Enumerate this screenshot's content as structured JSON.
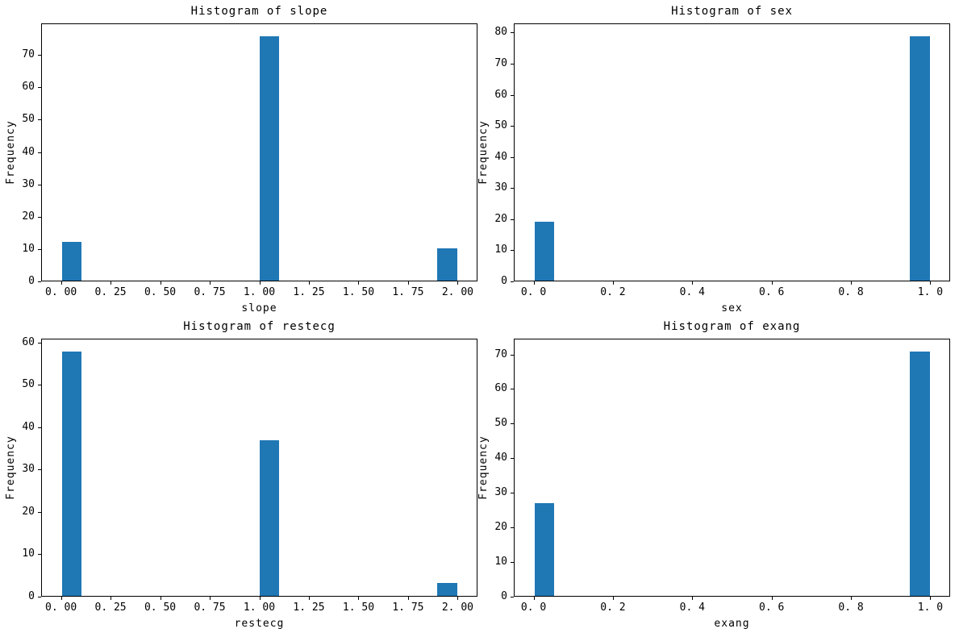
{
  "figure": {
    "background": "#ffffff",
    "bar_color": "#1f77b4",
    "axis_color": "#000000",
    "text_color": "#000000"
  },
  "chart_data": [
    {
      "type": "bar",
      "variable": "slope",
      "title": "Histogram of slope",
      "xlabel": "slope",
      "ylabel": "Frequency",
      "bin_width": 0.1,
      "bars": [
        {
          "x0": 0.0,
          "x1": 0.1,
          "value": 12
        },
        {
          "x0": 1.0,
          "x1": 1.1,
          "value": 76
        },
        {
          "x0": 1.9,
          "x1": 2.0,
          "value": 10
        }
      ],
      "xlim": [
        -0.1,
        2.1
      ],
      "ylim": [
        0,
        79.8
      ],
      "grid": false,
      "legend": null,
      "xticks": [
        {
          "v": 0.0,
          "label": "0. 00"
        },
        {
          "v": 0.25,
          "label": "0. 25"
        },
        {
          "v": 0.5,
          "label": "0. 50"
        },
        {
          "v": 0.75,
          "label": "0. 75"
        },
        {
          "v": 1.0,
          "label": "1. 00"
        },
        {
          "v": 1.25,
          "label": "1. 25"
        },
        {
          "v": 1.5,
          "label": "1. 50"
        },
        {
          "v": 1.75,
          "label": "1. 75"
        },
        {
          "v": 2.0,
          "label": "2. 00"
        }
      ],
      "yticks": [
        {
          "v": 0,
          "label": "0"
        },
        {
          "v": 10,
          "label": "10"
        },
        {
          "v": 20,
          "label": "20"
        },
        {
          "v": 30,
          "label": "30"
        },
        {
          "v": 40,
          "label": "40"
        },
        {
          "v": 50,
          "label": "50"
        },
        {
          "v": 60,
          "label": "60"
        },
        {
          "v": 70,
          "label": "70"
        }
      ]
    },
    {
      "type": "bar",
      "variable": "sex",
      "title": "Histogram of sex",
      "xlabel": "sex",
      "ylabel": "Frequency",
      "bin_width": 0.05,
      "bars": [
        {
          "x0": 0.0,
          "x1": 0.05,
          "value": 19
        },
        {
          "x0": 0.95,
          "x1": 1.0,
          "value": 79
        }
      ],
      "xlim": [
        -0.05,
        1.05
      ],
      "ylim": [
        0,
        82.95
      ],
      "grid": false,
      "legend": null,
      "xticks": [
        {
          "v": 0.0,
          "label": "0. 0"
        },
        {
          "v": 0.2,
          "label": "0. 2"
        },
        {
          "v": 0.4,
          "label": "0. 4"
        },
        {
          "v": 0.6,
          "label": "0. 6"
        },
        {
          "v": 0.8,
          "label": "0. 8"
        },
        {
          "v": 1.0,
          "label": "1. 0"
        }
      ],
      "yticks": [
        {
          "v": 0,
          "label": "0"
        },
        {
          "v": 10,
          "label": "10"
        },
        {
          "v": 20,
          "label": "20"
        },
        {
          "v": 30,
          "label": "30"
        },
        {
          "v": 40,
          "label": "40"
        },
        {
          "v": 50,
          "label": "50"
        },
        {
          "v": 60,
          "label": "60"
        },
        {
          "v": 70,
          "label": "70"
        },
        {
          "v": 80,
          "label": "80"
        }
      ]
    },
    {
      "type": "bar",
      "variable": "restecg",
      "title": "Histogram of restecg",
      "xlabel": "restecg",
      "ylabel": "Frequency",
      "bin_width": 0.1,
      "bars": [
        {
          "x0": 0.0,
          "x1": 0.1,
          "value": 58
        },
        {
          "x0": 1.0,
          "x1": 1.1,
          "value": 37
        },
        {
          "x0": 1.9,
          "x1": 2.0,
          "value": 3
        }
      ],
      "xlim": [
        -0.1,
        2.1
      ],
      "ylim": [
        0,
        60.9
      ],
      "grid": false,
      "legend": null,
      "xticks": [
        {
          "v": 0.0,
          "label": "0. 00"
        },
        {
          "v": 0.25,
          "label": "0. 25"
        },
        {
          "v": 0.5,
          "label": "0. 50"
        },
        {
          "v": 0.75,
          "label": "0. 75"
        },
        {
          "v": 1.0,
          "label": "1. 00"
        },
        {
          "v": 1.25,
          "label": "1. 25"
        },
        {
          "v": 1.5,
          "label": "1. 50"
        },
        {
          "v": 1.75,
          "label": "1. 75"
        },
        {
          "v": 2.0,
          "label": "2. 00"
        }
      ],
      "yticks": [
        {
          "v": 0,
          "label": "0"
        },
        {
          "v": 10,
          "label": "10"
        },
        {
          "v": 20,
          "label": "20"
        },
        {
          "v": 30,
          "label": "30"
        },
        {
          "v": 40,
          "label": "40"
        },
        {
          "v": 50,
          "label": "50"
        },
        {
          "v": 60,
          "label": "60"
        }
      ]
    },
    {
      "type": "bar",
      "variable": "exang",
      "title": "Histogram of exang",
      "xlabel": "exang",
      "ylabel": "Frequency",
      "bin_width": 0.05,
      "bars": [
        {
          "x0": 0.0,
          "x1": 0.05,
          "value": 27
        },
        {
          "x0": 0.95,
          "x1": 1.0,
          "value": 71
        }
      ],
      "xlim": [
        -0.05,
        1.05
      ],
      "ylim": [
        0,
        74.55
      ],
      "grid": false,
      "legend": null,
      "xticks": [
        {
          "v": 0.0,
          "label": "0. 0"
        },
        {
          "v": 0.2,
          "label": "0. 2"
        },
        {
          "v": 0.4,
          "label": "0. 4"
        },
        {
          "v": 0.6,
          "label": "0. 6"
        },
        {
          "v": 0.8,
          "label": "0. 8"
        },
        {
          "v": 1.0,
          "label": "1. 0"
        }
      ],
      "yticks": [
        {
          "v": 0,
          "label": "0"
        },
        {
          "v": 10,
          "label": "10"
        },
        {
          "v": 20,
          "label": "20"
        },
        {
          "v": 30,
          "label": "30"
        },
        {
          "v": 40,
          "label": "40"
        },
        {
          "v": 50,
          "label": "50"
        },
        {
          "v": 60,
          "label": "60"
        },
        {
          "v": 70,
          "label": "70"
        }
      ]
    }
  ]
}
